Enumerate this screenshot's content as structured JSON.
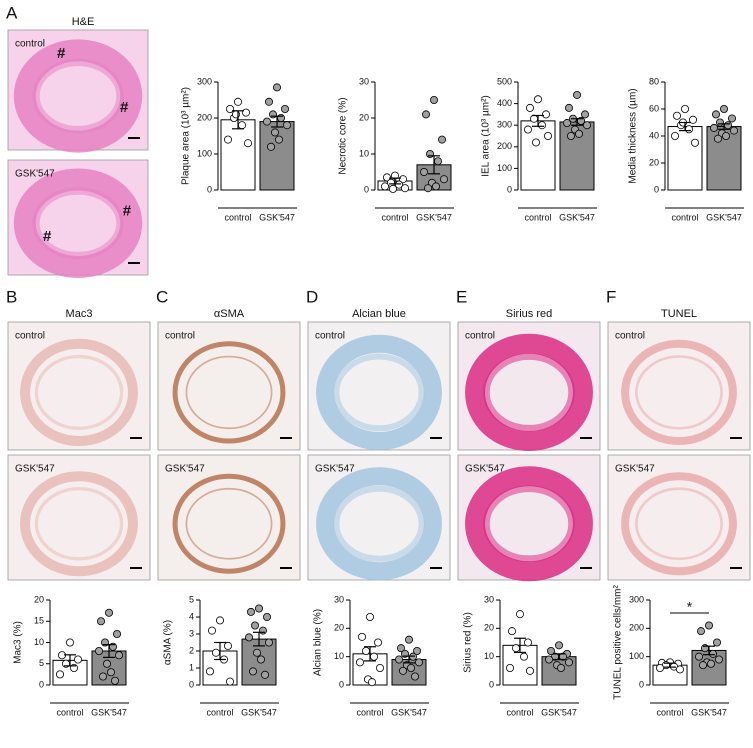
{
  "figure": {
    "panels": [
      {
        "letter": "A",
        "title": "H&E",
        "images": [
          {
            "label": "control",
            "marks": [
              "#",
              "#"
            ]
          },
          {
            "label": "GSK'547",
            "marks": [
              "#",
              "#"
            ]
          }
        ]
      },
      {
        "letter": "B",
        "title": "Mac3",
        "images": [
          {
            "label": "control"
          },
          {
            "label": "GSK'547"
          }
        ]
      },
      {
        "letter": "C",
        "title": "αSMA",
        "images": [
          {
            "label": "control"
          },
          {
            "label": "GSK'547"
          }
        ]
      },
      {
        "letter": "D",
        "title": "Alcian blue",
        "images": [
          {
            "label": "control"
          },
          {
            "label": "GSK'547"
          }
        ]
      },
      {
        "letter": "E",
        "title": "Sirius red",
        "images": [
          {
            "label": "control"
          },
          {
            "label": "GSK'547"
          }
        ]
      },
      {
        "letter": "F",
        "title": "TUNEL",
        "images": [
          {
            "label": "control"
          },
          {
            "label": "GSK'547"
          }
        ]
      }
    ]
  },
  "chart_data": [
    {
      "type": "bar",
      "ylabel": "Plaque area (10³ µm²)",
      "categories": [
        "control",
        "GSK'547"
      ],
      "values": [
        195,
        190
      ],
      "errors": [
        25,
        15
      ],
      "colors": [
        "#ffffff",
        "#8c8c8c"
      ],
      "points": [
        [
          245,
          225,
          215,
          200,
          180,
          140,
          130,
          210
        ],
        [
          285,
          245,
          225,
          210,
          200,
          190,
          180,
          160,
          140,
          120
        ]
      ],
      "ylim": [
        0,
        300
      ],
      "yticks": [
        0,
        100,
        200,
        300
      ]
    },
    {
      "type": "bar",
      "ylabel": "Necrotic core (%)",
      "categories": [
        "control",
        "GSK'547"
      ],
      "values": [
        2.5,
        7
      ],
      "errors": [
        0.8,
        2.5
      ],
      "colors": [
        "#ffffff",
        "#8c8c8c"
      ],
      "points": [
        [
          4,
          3.5,
          3,
          2,
          1.5,
          1,
          0.5,
          0.3
        ],
        [
          25,
          21,
          14,
          10,
          8,
          5,
          3,
          2,
          1,
          0.5
        ]
      ],
      "ylim": [
        0,
        30
      ],
      "yticks": [
        0,
        10,
        20,
        30
      ]
    },
    {
      "type": "bar",
      "ylabel": "IEL area (10³ µm²)",
      "categories": [
        "control",
        "GSK'547"
      ],
      "values": [
        320,
        315
      ],
      "errors": [
        25,
        15
      ],
      "colors": [
        "#ffffff",
        "#8c8c8c"
      ],
      "points": [
        [
          420,
          380,
          350,
          330,
          300,
          280,
          250,
          220
        ],
        [
          440,
          380,
          350,
          330,
          320,
          310,
          300,
          280,
          260,
          250
        ]
      ],
      "ylim": [
        0,
        500
      ],
      "yticks": [
        0,
        100,
        200,
        300,
        400,
        500
      ]
    },
    {
      "type": "bar",
      "ylabel": "Media thickness (µm)",
      "categories": [
        "control",
        "GSK'547"
      ],
      "values": [
        47,
        47
      ],
      "errors": [
        3,
        2
      ],
      "colors": [
        "#ffffff",
        "#8c8c8c"
      ],
      "points": [
        [
          60,
          55,
          52,
          48,
          45,
          40,
          35,
          50
        ],
        [
          60,
          56,
          53,
          50,
          48,
          46,
          44,
          42,
          40,
          38
        ]
      ],
      "ylim": [
        0,
        80
      ],
      "yticks": [
        0,
        20,
        40,
        60,
        80
      ]
    },
    {
      "type": "bar",
      "ylabel": "Mac3 (%)",
      "categories": [
        "control",
        "GSK'547"
      ],
      "values": [
        5.8,
        8
      ],
      "errors": [
        1.3,
        1.5
      ],
      "colors": [
        "#ffffff",
        "#8c8c8c"
      ],
      "points": [
        [
          10,
          7,
          6,
          5,
          4,
          2.5
        ],
        [
          17,
          15,
          12,
          10,
          9,
          8,
          7,
          5,
          3,
          2,
          1
        ]
      ],
      "ylim": [
        0,
        20
      ],
      "yticks": [
        0,
        5,
        10,
        15,
        20
      ]
    },
    {
      "type": "bar",
      "ylabel": "αSMA (%)",
      "categories": [
        "control",
        "GSK'547"
      ],
      "values": [
        2,
        2.7
      ],
      "errors": [
        0.5,
        0.4
      ],
      "colors": [
        "#ffffff",
        "#8c8c8c"
      ],
      "points": [
        [
          3.8,
          3.2,
          2.3,
          1.9,
          1.5,
          0.8,
          0.2
        ],
        [
          4.5,
          4.3,
          4,
          3.5,
          3.2,
          2.8,
          2.5,
          1.9,
          1.5,
          0.8,
          0.6
        ]
      ],
      "ylim": [
        0,
        5
      ],
      "yticks": [
        0,
        1,
        2,
        3,
        4,
        5
      ]
    },
    {
      "type": "bar",
      "ylabel": "Alcian blue (%)",
      "categories": [
        "control",
        "GSK'547"
      ],
      "values": [
        11,
        9
      ],
      "errors": [
        2.5,
        1.2
      ],
      "colors": [
        "#ffffff",
        "#8c8c8c"
      ],
      "points": [
        [
          24,
          17,
          15,
          12,
          10,
          8,
          6,
          2,
          1
        ],
        [
          16,
          13,
          12,
          11,
          10,
          9,
          8,
          7,
          6,
          5,
          3
        ]
      ],
      "ylim": [
        0,
        30
      ],
      "yticks": [
        0,
        10,
        20,
        30
      ]
    },
    {
      "type": "bar",
      "ylabel": "Sirius red (%)",
      "categories": [
        "control",
        "GSK'547"
      ],
      "values": [
        14,
        10
      ],
      "errors": [
        2.5,
        1
      ],
      "colors": [
        "#ffffff",
        "#8c8c8c"
      ],
      "points": [
        [
          25,
          19,
          15,
          13,
          10,
          6,
          5
        ],
        [
          14,
          12,
          11,
          10,
          10,
          9,
          8,
          7,
          6
        ]
      ],
      "ylim": [
        0,
        30
      ],
      "yticks": [
        0,
        10,
        20,
        30
      ]
    },
    {
      "type": "bar",
      "ylabel": "TUNEL positive cells/mm²",
      "categories": [
        "control",
        "GSK'547"
      ],
      "values": [
        70,
        122
      ],
      "errors": [
        7,
        15
      ],
      "colors": [
        "#ffffff",
        "#8c8c8c"
      ],
      "points": [
        [
          80,
          78,
          75,
          70,
          65,
          60,
          55
        ],
        [
          210,
          190,
          150,
          130,
          110,
          100,
          90,
          80,
          75,
          70
        ]
      ],
      "ylim": [
        0,
        300
      ],
      "yticks": [
        0,
        100,
        200,
        300
      ],
      "annotation": "*"
    }
  ]
}
